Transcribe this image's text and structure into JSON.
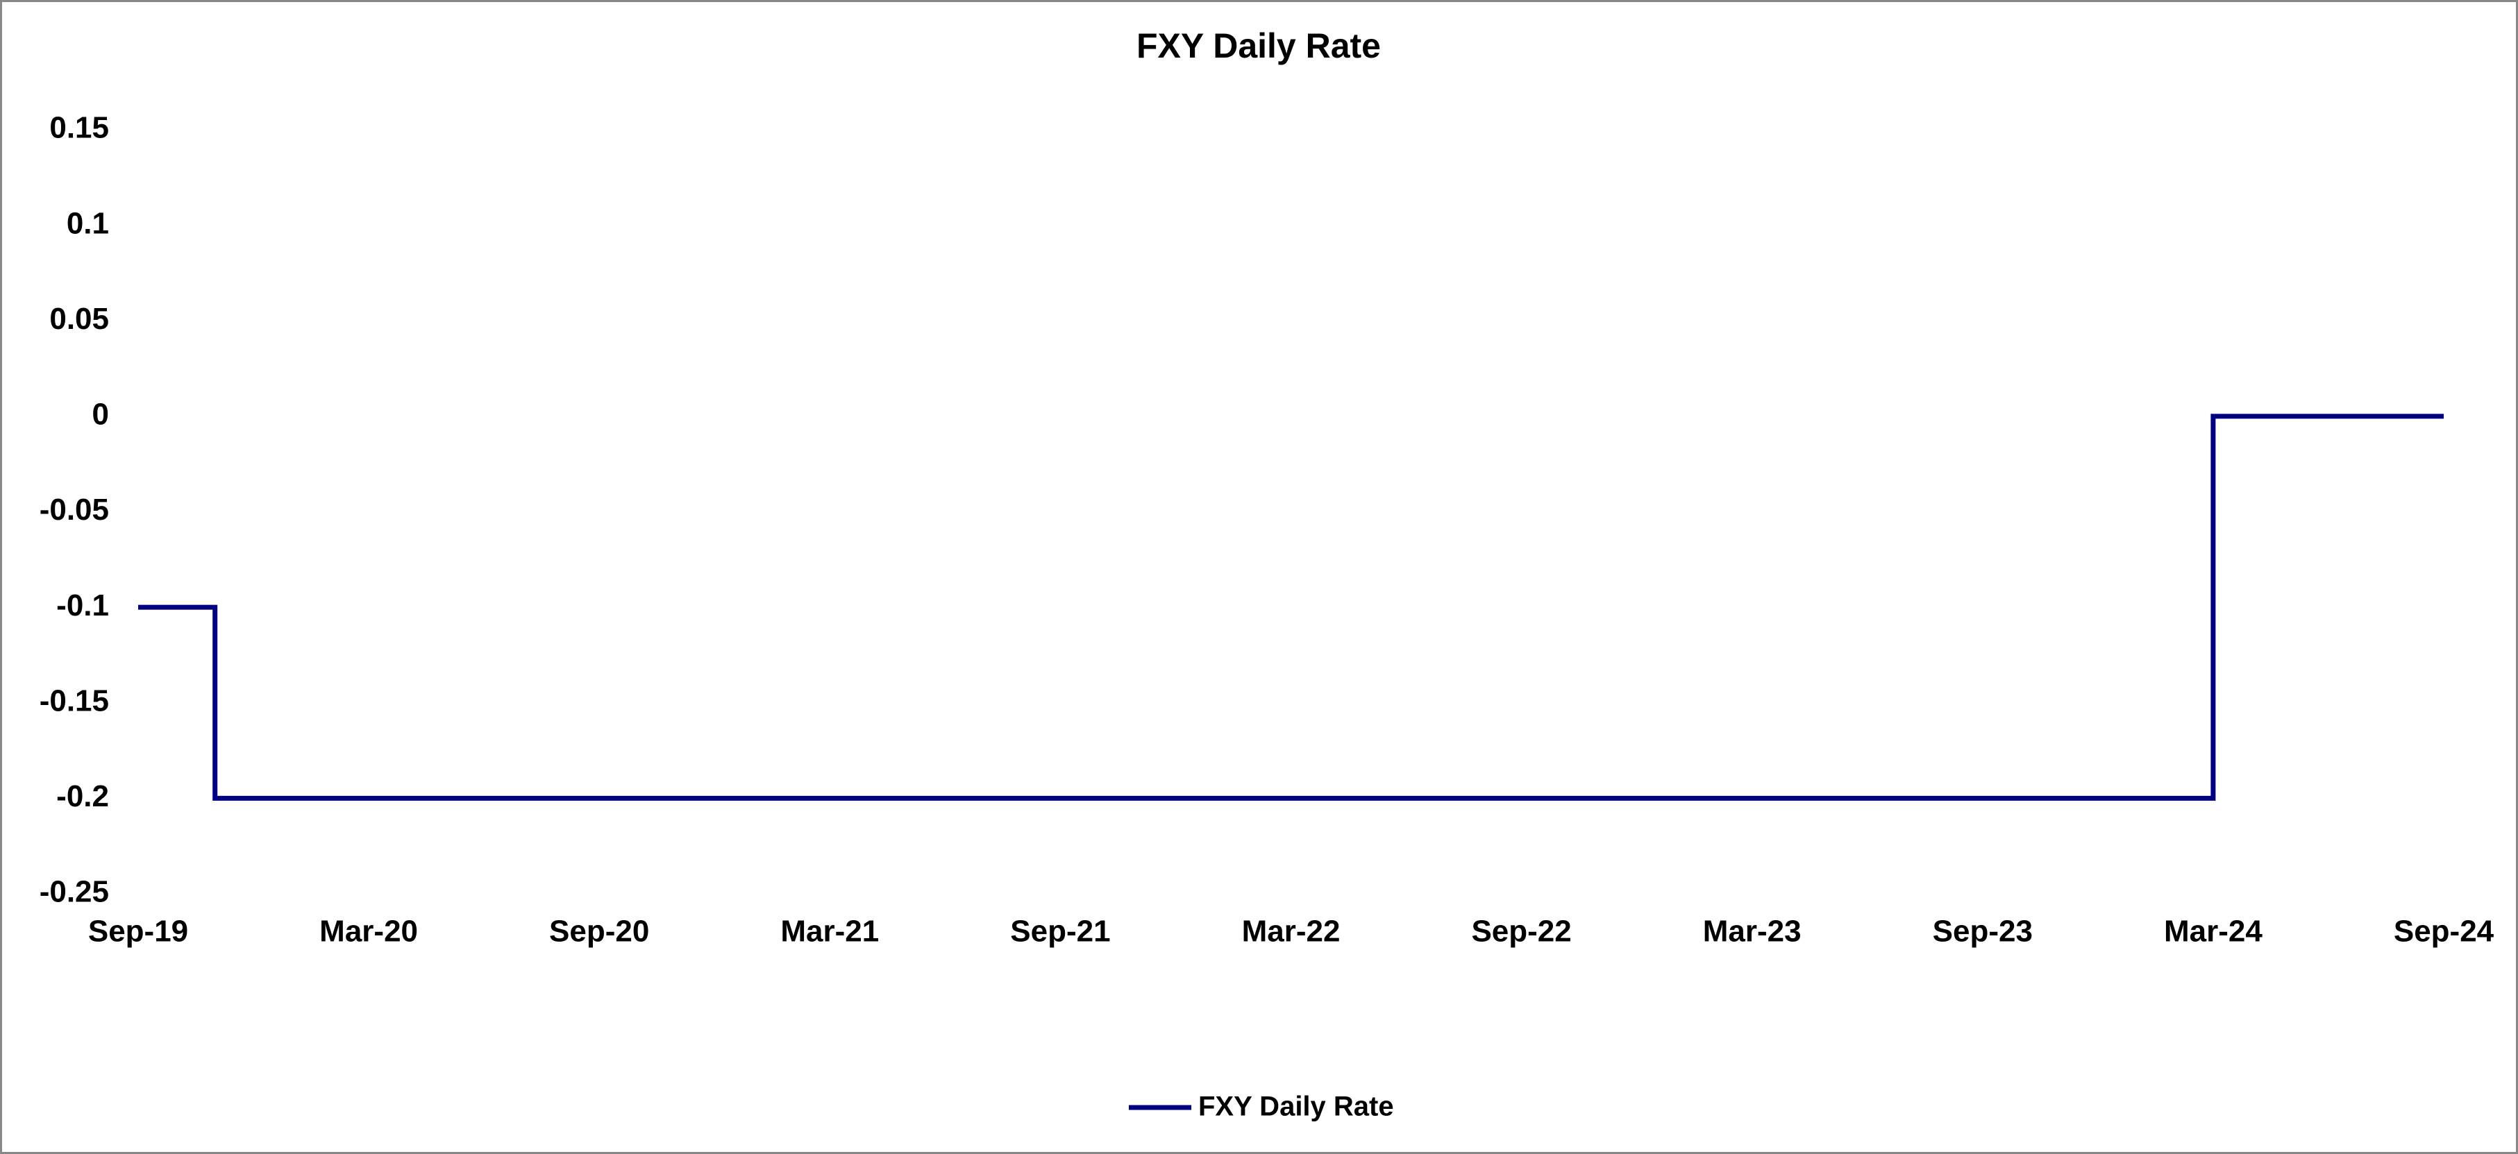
{
  "chart_data": {
    "type": "line",
    "title": "FXY Daily Rate",
    "x": [
      "2019-09",
      "2019-11",
      "2019-11",
      "2024-03",
      "2024-03",
      "2024-09"
    ],
    "series": [
      {
        "name": "FXY Daily Rate",
        "color": "#000080",
        "values": [
          -0.1,
          -0.1,
          -0.2,
          -0.2,
          0,
          0
        ]
      }
    ],
    "xlim": [
      "2019-09",
      "2024-09"
    ],
    "xticks": [
      {
        "value": "2019-09",
        "label": "Sep-19"
      },
      {
        "value": "2020-03",
        "label": "Mar-20"
      },
      {
        "value": "2020-09",
        "label": "Sep-20"
      },
      {
        "value": "2021-03",
        "label": "Mar-21"
      },
      {
        "value": "2021-09",
        "label": "Sep-21"
      },
      {
        "value": "2022-03",
        "label": "Mar-22"
      },
      {
        "value": "2022-09",
        "label": "Sep-22"
      },
      {
        "value": "2023-03",
        "label": "Mar-23"
      },
      {
        "value": "2023-09",
        "label": "Sep-23"
      },
      {
        "value": "2024-03",
        "label": "Mar-24"
      },
      {
        "value": "2024-09",
        "label": "Sep-24"
      }
    ],
    "ylim": [
      -0.25,
      0.15
    ],
    "yticks": [
      0.15,
      0.1,
      0.05,
      0,
      -0.05,
      -0.1,
      -0.15,
      -0.2,
      -0.25
    ],
    "grid": false,
    "legend": "bottom"
  }
}
